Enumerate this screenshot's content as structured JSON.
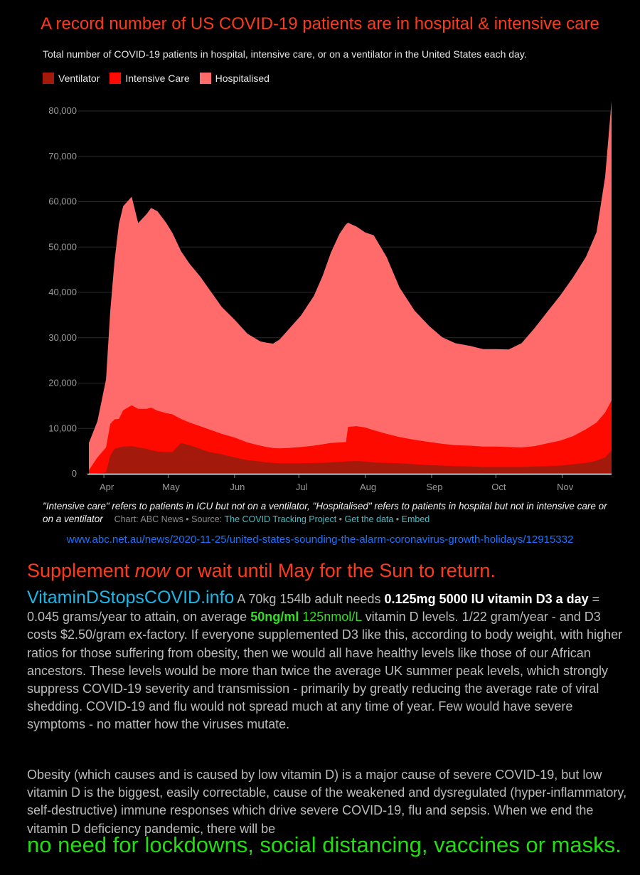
{
  "headline": "A record number of US COVID-19 patients are in hospital & intensive care",
  "subtitle": "Total number of COVID-19 patients in hospital, intensive care, or on a ventilator in the United States each day.",
  "legend": [
    {
      "label": "Ventilator",
      "color": "#a31a0c"
    },
    {
      "label": "Intensive Care",
      "color": "#ff0a00"
    },
    {
      "label": "Hospitalised",
      "color": "#ff6b6b"
    }
  ],
  "chart_data": {
    "type": "area",
    "stacked": true,
    "title": "",
    "xlabel": "",
    "ylabel": "",
    "ylim": [
      0,
      80000
    ],
    "yticks": [
      0,
      10000,
      20000,
      30000,
      40000,
      50000,
      60000,
      70000,
      80000
    ],
    "ytick_labels": [
      "0",
      "10,000",
      "20,000",
      "30,000",
      "40,000",
      "50,000",
      "60,000",
      "70,000",
      "80,000"
    ],
    "xlim": [
      "2020-03-25",
      "2020-11-24"
    ],
    "xticks": [
      "2020-04-01",
      "2020-05-01",
      "2020-06-01",
      "2020-07-01",
      "2020-08-01",
      "2020-09-01",
      "2020-10-01",
      "2020-11-01"
    ],
    "xtick_labels": [
      "Apr",
      "May",
      "Jun",
      "Jul",
      "Aug",
      "Sep",
      "Oct",
      "Nov"
    ],
    "grid": true,
    "legend_position": "top-left",
    "dates": [
      "2020-03-25",
      "2020-03-29",
      "2020-04-02",
      "2020-04-04",
      "2020-04-06",
      "2020-04-08",
      "2020-04-10",
      "2020-04-14",
      "2020-04-17",
      "2020-04-21",
      "2020-04-23",
      "2020-04-26",
      "2020-04-30",
      "2020-05-03",
      "2020-05-07",
      "2020-05-11",
      "2020-05-16",
      "2020-05-20",
      "2020-05-26",
      "2020-06-01",
      "2020-06-07",
      "2020-06-13",
      "2020-06-16",
      "2020-06-19",
      "2020-06-22",
      "2020-06-26",
      "2020-07-02",
      "2020-07-08",
      "2020-07-12",
      "2020-07-16",
      "2020-07-20",
      "2020-07-23",
      "2020-07-24",
      "2020-07-28",
      "2020-08-01",
      "2020-08-05",
      "2020-08-11",
      "2020-08-17",
      "2020-08-24",
      "2020-08-31",
      "2020-09-06",
      "2020-09-12",
      "2020-09-19",
      "2020-09-25",
      "2020-10-01",
      "2020-10-07",
      "2020-10-13",
      "2020-10-19",
      "2020-10-25",
      "2020-10-31",
      "2020-11-06",
      "2020-11-12",
      "2020-11-17",
      "2020-11-21",
      "2020-11-24",
      "2020-11-24"
    ],
    "series": [
      {
        "name": "Ventilator",
        "values": [
          0,
          100,
          300,
          4000,
          5500,
          5800,
          6000,
          6100,
          5800,
          5500,
          5200,
          4900,
          4800,
          4800,
          6800,
          6300,
          5500,
          4800,
          4300,
          3600,
          3000,
          2700,
          2500,
          2400,
          2300,
          2300,
          2300,
          2400,
          2400,
          2500,
          2600,
          2700,
          2750,
          2800,
          2700,
          2500,
          2400,
          2300,
          2100,
          1900,
          1800,
          1700,
          1600,
          1500,
          1500,
          1500,
          1500,
          1600,
          1700,
          1800,
          2100,
          2400,
          2900,
          3600,
          5200,
          0
        ]
      },
      {
        "name": "Intensive Care",
        "values": [
          800,
          3500,
          5500,
          7000,
          6500,
          6300,
          8000,
          9000,
          8500,
          8800,
          9400,
          9000,
          8600,
          8300,
          5300,
          5000,
          5000,
          5000,
          4500,
          4400,
          3900,
          3500,
          3400,
          3300,
          3300,
          3400,
          3600,
          3800,
          4100,
          4300,
          4300,
          4300,
          7600,
          7700,
          7500,
          7100,
          6400,
          5800,
          5400,
          5100,
          4800,
          4600,
          4600,
          4500,
          4500,
          4400,
          4300,
          4500,
          5000,
          5500,
          6200,
          7400,
          8400,
          9900,
          11000,
          0
        ]
      },
      {
        "name": "Hospitalised",
        "values": [
          6000,
          8000,
          15000,
          25000,
          35000,
          43000,
          45000,
          46000,
          41000,
          43000,
          44000,
          44000,
          42000,
          40000,
          37000,
          35000,
          33000,
          31000,
          28000,
          26000,
          24000,
          23000,
          23000,
          23000,
          24000,
          26000,
          29000,
          33000,
          37000,
          42000,
          46000,
          48000,
          45000,
          44000,
          43000,
          43000,
          39000,
          33000,
          28500,
          25500,
          23500,
          22500,
          22000,
          21500,
          21500,
          21500,
          23000,
          26000,
          29000,
          32000,
          35000,
          38000,
          42000,
          52000,
          66000,
          0
        ]
      }
    ]
  },
  "footnote": "\"Intensive care\" refers to patients in ICU but not on a ventilator, \"Hospitalised\" refers to patients in hospital but not in intensive care or on a ventilator",
  "credit": {
    "prefix": "Chart: ABC News • Source: ",
    "source_link": "The COVID Tracking Project",
    "sep1": " • ",
    "data_link": "Get the data",
    "sep2": " • ",
    "embed_link": "Embed"
  },
  "url": "www.abc.net.au/news/2020-11-25/united-states-sounding-the-alarm-coronavirus-growth-holidays/12915332",
  "supplement": {
    "pre": "Supplement ",
    "em": "now",
    "post": " or wait until May for the Sun to return."
  },
  "body": {
    "site": "VitaminDStopsCOVID.info",
    "p1a": "  A 70kg 154lb adult needs ",
    "dose": "0.125mg 5000 IU vitamin D3 a day",
    "p1b": " = 0.045 grams/year to attain, on average ",
    "level_ng": "50ng/ml",
    "level_nmol": " 125nmol/L",
    "p1c": " vitamin D levels.  1/22 gram/year - and D3 costs $2.50/gram ex-factory.  If everyone supplemented D3 like this, according to body weight, with higher ratios for those suffering from obesity, then we would all have healthy levels like those of our African ancestors.  These levels would be more than twice the average UK summer peak levels, which strongly suppress COVID-19 severity and transmission - primarily by greatly reducing the average rate of viral shedding.  COVID-19 and flu would not spread much at any time of year.  Few would have severe symptoms - no matter how the viruses mutate.",
    "p2": "Obesity (which causes and is caused by low vitamin D) is a major cause of severe COVID-19, but low vitamin D is the biggest, easily correctable, cause of the weakened and dysregulated (hyper-inflammatory, self-destructive)  immune responses which drive severe COVID-19, flu and sepsis.  When we end the vitamin D deficiency pandemic, there will be",
    "final": "no need for lockdowns, social distancing, vaccines or masks."
  }
}
